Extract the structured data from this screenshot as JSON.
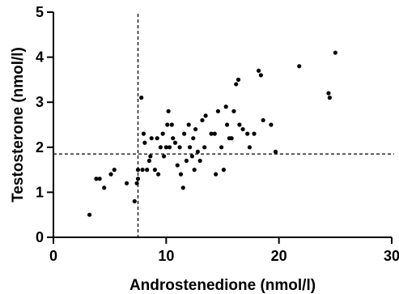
{
  "chart_data": {
    "type": "scatter",
    "xlabel": "Androstenedione (nmol/l)",
    "ylabel": "Testosterone (nmol/l)",
    "xlim": [
      0,
      30
    ],
    "ylim": [
      0,
      5
    ],
    "x_ticks": [
      0,
      10,
      20,
      30
    ],
    "y_ticks": [
      0,
      1,
      2,
      3,
      4,
      5
    ],
    "x_tick_labels": [
      "0",
      "10",
      "20",
      "30"
    ],
    "y_tick_labels": [
      "0",
      "1",
      "2",
      "3",
      "4",
      "5"
    ],
    "grid": false,
    "legend": "none",
    "reference_lines": {
      "vertical_x": 7.5,
      "horizontal_y": 1.85
    },
    "series": [
      {
        "points": [
          [
            3.2,
            0.5
          ],
          [
            3.8,
            1.3
          ],
          [
            4.1,
            1.3
          ],
          [
            4.5,
            1.1
          ],
          [
            5.1,
            1.4
          ],
          [
            5.4,
            1.5
          ],
          [
            6.5,
            1.2
          ],
          [
            7.2,
            0.8
          ],
          [
            7.4,
            1.2
          ],
          [
            7.5,
            1.3
          ],
          [
            7.5,
            1.5
          ],
          [
            7.8,
            3.1
          ],
          [
            7.9,
            1.5
          ],
          [
            8.0,
            2.3
          ],
          [
            8.1,
            2.1
          ],
          [
            8.3,
            1.5
          ],
          [
            8.5,
            1.7
          ],
          [
            8.6,
            1.8
          ],
          [
            8.7,
            2.2
          ],
          [
            9.0,
            1.5
          ],
          [
            9.2,
            2.2
          ],
          [
            9.3,
            1.4
          ],
          [
            9.5,
            2.0
          ],
          [
            9.7,
            2.3
          ],
          [
            9.8,
            1.8
          ],
          [
            10.0,
            2.0
          ],
          [
            10.1,
            2.5
          ],
          [
            10.2,
            2.8
          ],
          [
            10.3,
            2.0
          ],
          [
            10.5,
            2.5
          ],
          [
            10.6,
            2.2
          ],
          [
            10.8,
            2.1
          ],
          [
            11.0,
            1.6
          ],
          [
            11.2,
            2.0
          ],
          [
            11.3,
            1.4
          ],
          [
            11.5,
            1.1
          ],
          [
            11.6,
            2.3
          ],
          [
            11.8,
            1.7
          ],
          [
            12.0,
            2.5
          ],
          [
            12.1,
            2.0
          ],
          [
            12.3,
            1.8
          ],
          [
            12.4,
            2.2
          ],
          [
            12.5,
            1.5
          ],
          [
            12.6,
            2.4
          ],
          [
            12.8,
            1.9
          ],
          [
            13.0,
            1.7
          ],
          [
            13.2,
            2.6
          ],
          [
            13.4,
            2.0
          ],
          [
            13.5,
            2.7
          ],
          [
            14.0,
            2.3
          ],
          [
            14.3,
            2.3
          ],
          [
            14.4,
            1.4
          ],
          [
            14.6,
            2.8
          ],
          [
            14.9,
            2.0
          ],
          [
            15.1,
            1.5
          ],
          [
            15.3,
            2.9
          ],
          [
            15.4,
            2.5
          ],
          [
            15.6,
            2.2
          ],
          [
            15.8,
            2.2
          ],
          [
            16.0,
            2.8
          ],
          [
            16.2,
            3.4
          ],
          [
            16.4,
            3.5
          ],
          [
            16.5,
            2.5
          ],
          [
            16.8,
            2.4
          ],
          [
            17.2,
            2.3
          ],
          [
            17.4,
            2.0
          ],
          [
            17.8,
            2.3
          ],
          [
            18.2,
            3.7
          ],
          [
            18.4,
            3.6
          ],
          [
            18.6,
            2.6
          ],
          [
            19.3,
            2.5
          ],
          [
            19.7,
            1.9
          ],
          [
            21.8,
            3.8
          ],
          [
            24.4,
            3.2
          ],
          [
            24.5,
            3.1
          ],
          [
            25.0,
            4.1
          ]
        ]
      }
    ]
  }
}
